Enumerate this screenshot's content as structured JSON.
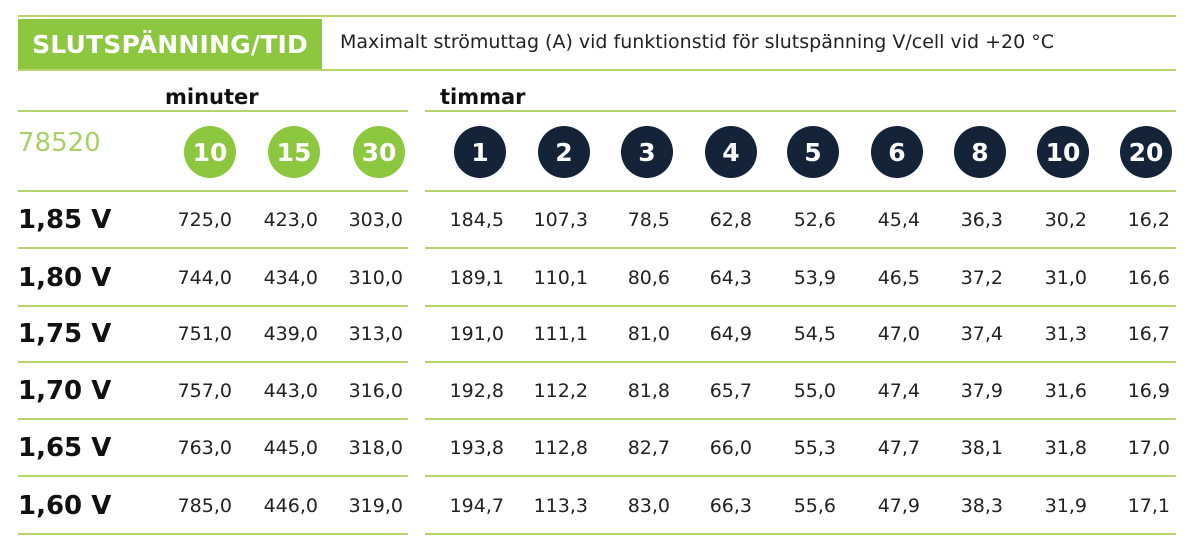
{
  "header": {
    "tag": "SLUTSPÄNNING/TID",
    "description": "Maximalt strömuttag (A) vid funktionstid för slutspänning V/cell vid +20 °C"
  },
  "groups": {
    "minutes": "minuter",
    "hours": "timmar"
  },
  "model": "78520",
  "columns": [
    {
      "label": "10",
      "group": "minutes"
    },
    {
      "label": "15",
      "group": "minutes"
    },
    {
      "label": "30",
      "group": "minutes"
    },
    {
      "label": "1",
      "group": "hours"
    },
    {
      "label": "2",
      "group": "hours"
    },
    {
      "label": "3",
      "group": "hours"
    },
    {
      "label": "4",
      "group": "hours"
    },
    {
      "label": "5",
      "group": "hours"
    },
    {
      "label": "6",
      "group": "hours"
    },
    {
      "label": "8",
      "group": "hours"
    },
    {
      "label": "10",
      "group": "hours"
    },
    {
      "label": "20",
      "group": "hours"
    }
  ],
  "rows": [
    {
      "voltage": "1,85 V",
      "values": [
        "725,0",
        "423,0",
        "303,0",
        "184,5",
        "107,3",
        "78,5",
        "62,8",
        "52,6",
        "45,4",
        "36,3",
        "30,2",
        "16,2"
      ]
    },
    {
      "voltage": "1,80 V",
      "values": [
        "744,0",
        "434,0",
        "310,0",
        "189,1",
        "110,1",
        "80,6",
        "64,3",
        "53,9",
        "46,5",
        "37,2",
        "31,0",
        "16,6"
      ]
    },
    {
      "voltage": "1,75 V",
      "values": [
        "751,0",
        "439,0",
        "313,0",
        "191,0",
        "111,1",
        "81,0",
        "64,9",
        "54,5",
        "47,0",
        "37,4",
        "31,3",
        "16,7"
      ]
    },
    {
      "voltage": "1,70 V",
      "values": [
        "757,0",
        "443,0",
        "316,0",
        "192,8",
        "112,2",
        "81,8",
        "65,7",
        "55,0",
        "47,4",
        "37,9",
        "31,6",
        "16,9"
      ]
    },
    {
      "voltage": "1,65 V",
      "values": [
        "763,0",
        "445,0",
        "318,0",
        "193,8",
        "112,8",
        "82,7",
        "66,0",
        "55,3",
        "47,7",
        "38,1",
        "31,8",
        "17,0"
      ]
    },
    {
      "voltage": "1,60 V",
      "values": [
        "785,0",
        "446,0",
        "319,0",
        "194,7",
        "113,3",
        "83,0",
        "66,3",
        "55,6",
        "47,9",
        "38,3",
        "31,9",
        "17,1"
      ]
    }
  ],
  "colors": {
    "green": "#8dc63f",
    "navy": "#152339",
    "line": "#b5d56a"
  }
}
